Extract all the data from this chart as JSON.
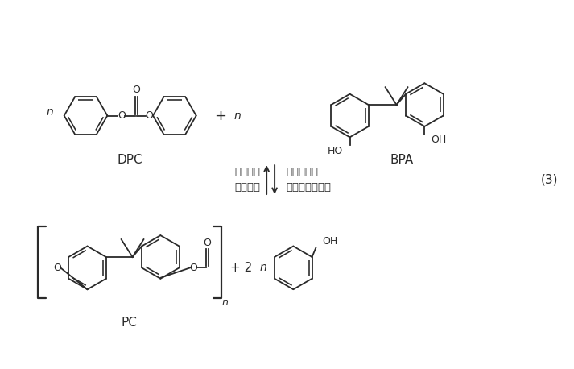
{
  "bg_color": "#ffffff",
  "bond_color": "#2a2a2a",
  "label_DPC": "DPC",
  "label_BPA": "BPA",
  "label_PC": "PC",
  "label_left1": "无溶剂，",
  "label_left2": "真空熴融",
  "label_right1": "平衡反应，",
  "label_right2": "逆反应更易发生",
  "label_eq": "(3)",
  "figsize": [
    7.13,
    4.58
  ],
  "dpi": 100
}
